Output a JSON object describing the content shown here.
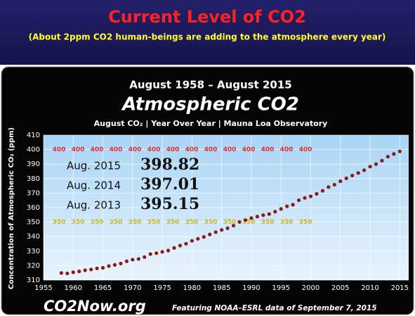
{
  "chart_data": {
    "type": "scatter",
    "title": "Current Level of CO2",
    "subtitle": "(About 2ppm CO2 human-beings are adding to the atmosphere every year)",
    "chart_heading": "August 1958 – August 2015",
    "chart_title": "Atmospheric CO2",
    "chart_subtitle": "August CO₂ | Year Over Year | Mauna Loa Observatory",
    "y_label": "Concentration of Atmospheric CO₂ (ppm)",
    "source_brand": "CO2Now.org",
    "source_note": "Featuring NOAA–ESRL data of September 7, 2015",
    "x": [
      1958,
      1959,
      1960,
      1961,
      1962,
      1963,
      1964,
      1965,
      1966,
      1967,
      1968,
      1969,
      1970,
      1971,
      1972,
      1973,
      1974,
      1975,
      1976,
      1977,
      1978,
      1979,
      1980,
      1981,
      1982,
      1983,
      1984,
      1985,
      1986,
      1987,
      1988,
      1989,
      1990,
      1991,
      1992,
      1993,
      1994,
      1995,
      1996,
      1997,
      1998,
      1999,
      2000,
      2001,
      2002,
      2003,
      2004,
      2005,
      2006,
      2007,
      2008,
      2009,
      2010,
      2011,
      2012,
      2013,
      2014,
      2015
    ],
    "series": [
      {
        "name": "August CO2",
        "color": "#8b1a1a",
        "values": [
          314.9,
          314.6,
          315.4,
          316.0,
          316.8,
          317.3,
          318.1,
          318.5,
          319.7,
          320.5,
          321.4,
          323.0,
          324.1,
          324.6,
          325.9,
          328.0,
          328.6,
          329.5,
          330.4,
          332.2,
          333.8,
          335.1,
          337.1,
          338.5,
          339.8,
          341.5,
          343.1,
          344.6,
          345.8,
          347.6,
          350.1,
          351.4,
          352.8,
          353.8,
          354.8,
          355.6,
          357.2,
          359.1,
          360.9,
          362.0,
          365.1,
          366.7,
          367.8,
          369.5,
          371.6,
          374.2,
          375.8,
          378.2,
          380.2,
          382.1,
          383.9,
          385.8,
          388.3,
          390.0,
          392.4,
          395.15,
          397.01,
          398.82
        ]
      }
    ],
    "reference_lines": [
      {
        "value": 400,
        "color": "#e03030"
      },
      {
        "value": 350,
        "color": "#c8b820"
      }
    ],
    "annotations": [
      {
        "label": "Aug. 2015",
        "text": "398.82"
      },
      {
        "label": "Aug. 2014",
        "text": "397.01"
      },
      {
        "label": "Aug. 2013",
        "text": "395.15"
      }
    ],
    "xlim": [
      1955,
      2016.5
    ],
    "xticks": [
      1955,
      1960,
      1965,
      1970,
      1975,
      1980,
      1985,
      1990,
      1995,
      2000,
      2005,
      2010,
      2015
    ],
    "ylim": [
      310,
      410
    ],
    "yticks": [
      310,
      320,
      330,
      340,
      350,
      360,
      370,
      380,
      390,
      400,
      410
    ],
    "grid": true
  }
}
